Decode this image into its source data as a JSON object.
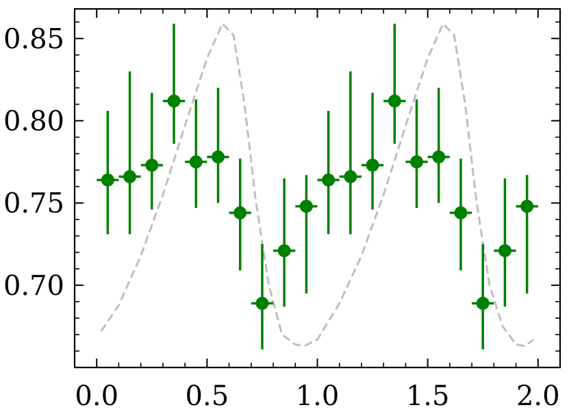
{
  "chart_data": {
    "type": "scatter",
    "title": "",
    "xlabel": "",
    "ylabel": "",
    "xlim": [
      -0.1,
      2.1
    ],
    "ylim": [
      0.65,
      0.868
    ],
    "x_ticks": [
      0.0,
      0.5,
      1.0,
      1.5,
      2.0
    ],
    "x_tick_labels": [
      "0.0",
      "0.5",
      "1.0",
      "1.5",
      "2.0"
    ],
    "y_ticks": [
      0.7,
      0.75,
      0.8,
      0.85
    ],
    "y_tick_labels": [
      "0.70",
      "0.75",
      "0.80",
      "0.85"
    ],
    "grid": false,
    "legend": null,
    "series": [
      {
        "type": "errorbar",
        "color": "#008000",
        "x": [
          0.05,
          0.15,
          0.25,
          0.35,
          0.45,
          0.55,
          0.65,
          0.75,
          0.85,
          0.95,
          1.05,
          1.15,
          1.25,
          1.35,
          1.45,
          1.55,
          1.65,
          1.75,
          1.85,
          1.95
        ],
        "x_err": 0.05,
        "y": [
          0.764,
          0.766,
          0.773,
          0.812,
          0.775,
          0.778,
          0.744,
          0.689,
          0.721,
          0.748,
          0.764,
          0.766,
          0.773,
          0.812,
          0.775,
          0.778,
          0.744,
          0.689,
          0.721,
          0.748
        ],
        "y_err_lower": [
          0.033,
          0.035,
          0.027,
          0.026,
          0.028,
          0.028,
          0.035,
          0.028,
          0.034,
          0.053,
          0.033,
          0.035,
          0.027,
          0.026,
          0.028,
          0.028,
          0.035,
          0.028,
          0.034,
          0.053
        ],
        "y_err_upper": [
          0.042,
          0.064,
          0.044,
          0.047,
          0.038,
          0.042,
          0.033,
          0.036,
          0.044,
          0.019,
          0.042,
          0.064,
          0.044,
          0.047,
          0.038,
          0.042,
          0.033,
          0.036,
          0.044,
          0.019
        ]
      },
      {
        "type": "line",
        "style": "dashed",
        "color": "#bfbfbf",
        "x": [
          0.02,
          0.1,
          0.2,
          0.3,
          0.4,
          0.5,
          0.57,
          0.62,
          0.67,
          0.72,
          0.78,
          0.84,
          0.9,
          0.94,
          1.0,
          1.1,
          1.2,
          1.3,
          1.4,
          1.5,
          1.57,
          1.62,
          1.67,
          1.72,
          1.78,
          1.84,
          1.9,
          1.94,
          1.98
        ],
        "y": [
          0.672,
          0.688,
          0.718,
          0.755,
          0.797,
          0.838,
          0.859,
          0.852,
          0.81,
          0.752,
          0.7,
          0.67,
          0.664,
          0.663,
          0.667,
          0.689,
          0.718,
          0.755,
          0.797,
          0.838,
          0.859,
          0.852,
          0.81,
          0.752,
          0.7,
          0.675,
          0.664,
          0.663,
          0.667
        ]
      }
    ]
  }
}
